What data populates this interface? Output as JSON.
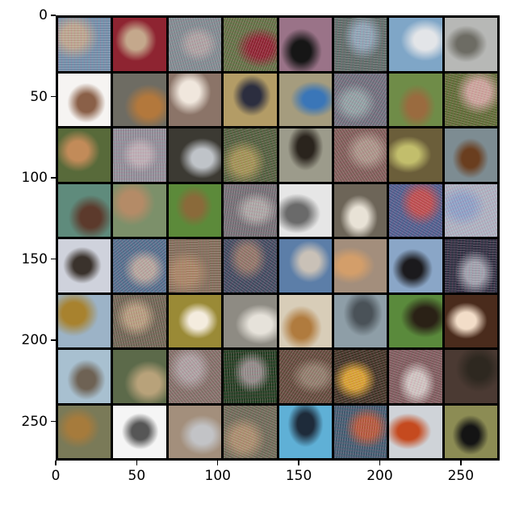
{
  "figure": {
    "x_ticks": [
      "0",
      "50",
      "100",
      "150",
      "200",
      "250"
    ],
    "y_ticks": [
      "0",
      "50",
      "100",
      "150",
      "200",
      "250"
    ]
  },
  "grid": {
    "rows": 8,
    "cols": 8,
    "tiles": [
      {
        "subject": "noisy-blue-scene",
        "bg": "#6f8ea8",
        "fg": "#b7a58d"
      },
      {
        "subject": "cat-face",
        "bg": "#8e2431",
        "fg": "#c4a88c"
      },
      {
        "subject": "noisy-vehicle",
        "bg": "#7c8a8f",
        "fg": "#a8a2a1"
      },
      {
        "subject": "red-car-noisy",
        "bg": "#5f6f43",
        "fg": "#8a2330"
      },
      {
        "subject": "black-animal",
        "bg": "#9a7388",
        "fg": "#161616"
      },
      {
        "subject": "noisy-truck",
        "bg": "#5a6b67",
        "fg": "#8aa3b3"
      },
      {
        "subject": "airplane",
        "bg": "#7fa6c7",
        "fg": "#e3e5e8"
      },
      {
        "subject": "airplane-ground",
        "bg": "#b7b8b6",
        "fg": "#6d6c64"
      },
      {
        "subject": "frog-white-bg",
        "bg": "#f6f4f2",
        "fg": "#8a6048"
      },
      {
        "subject": "dog-running",
        "bg": "#6e6c63",
        "fg": "#b3783c"
      },
      {
        "subject": "cat-calico",
        "bg": "#8b7468",
        "fg": "#f0e7dd"
      },
      {
        "subject": "rider-horse",
        "bg": "#b39c66",
        "fg": "#2c2e3f"
      },
      {
        "subject": "blue-truck",
        "bg": "#a59c7e",
        "fg": "#3a76b8"
      },
      {
        "subject": "noisy-road",
        "bg": "#6a6e7a",
        "fg": "#8da0a2"
      },
      {
        "subject": "deer-field",
        "bg": "#6f8c48",
        "fg": "#9a6b3f"
      },
      {
        "subject": "horse-noisy",
        "bg": "#5c6b35",
        "fg": "#c7a49a"
      },
      {
        "subject": "deer",
        "bg": "#586a3a",
        "fg": "#c28b59"
      },
      {
        "subject": "noisy-gray",
        "bg": "#8c8d96",
        "fg": "#b8aeb3"
      },
      {
        "subject": "silver-car",
        "bg": "#3c3a33",
        "fg": "#bfc3c8"
      },
      {
        "subject": "noisy-green",
        "bg": "#4e5e3c",
        "fg": "#9c9152"
      },
      {
        "subject": "bison",
        "bg": "#9c9b8b",
        "fg": "#2a241d"
      },
      {
        "subject": "noisy-brown",
        "bg": "#7b5d57",
        "fg": "#a79487"
      },
      {
        "subject": "green-car",
        "bg": "#6b5e3a",
        "fg": "#c2be6c"
      },
      {
        "subject": "elk",
        "bg": "#7d8c92",
        "fg": "#6a3e1f"
      },
      {
        "subject": "dog-teal",
        "bg": "#5f8b7c",
        "fg": "#5c3a2c"
      },
      {
        "subject": "horse-field",
        "bg": "#7c906a",
        "fg": "#b48b67"
      },
      {
        "subject": "frog-green",
        "bg": "#5c8a3a",
        "fg": "#8a6a3a"
      },
      {
        "subject": "noisy-truck-2",
        "bg": "#6f6f73",
        "fg": "#a7a6a3"
      },
      {
        "subject": "rooster-white",
        "bg": "#e6e6e6",
        "fg": "#6a6a6a"
      },
      {
        "subject": "cat-white",
        "bg": "#6d6558",
        "fg": "#e8e2d6"
      },
      {
        "subject": "noisy-blue-plane",
        "bg": "#4c5d8c",
        "fg": "#b94c4c"
      },
      {
        "subject": "noisy-light",
        "bg": "#a9b1bf",
        "fg": "#8aa0c5"
      },
      {
        "subject": "deer-white",
        "bg": "#cfd2dc",
        "fg": "#3a322c"
      },
      {
        "subject": "noisy-boat",
        "bg": "#4f6d8a",
        "fg": "#b1a69c"
      },
      {
        "subject": "noisy-cat",
        "bg": "#7d6d58",
        "fg": "#a38463"
      },
      {
        "subject": "noisy-dark",
        "bg": "#3e4a5e",
        "fg": "#8c7566"
      },
      {
        "subject": "boat-red",
        "bg": "#5c7ea8",
        "fg": "#c9c1b7"
      },
      {
        "subject": "cat-orange",
        "bg": "#a38e7c",
        "fg": "#d39e6a"
      },
      {
        "subject": "ostrich",
        "bg": "#8aa6c7",
        "fg": "#1b1a1d"
      },
      {
        "subject": "dark-car-noisy",
        "bg": "#2c2f40",
        "fg": "#9aa0aa"
      },
      {
        "subject": "yellow-plane",
        "bg": "#9cb3c7",
        "fg": "#a8822e"
      },
      {
        "subject": "deer-noisy",
        "bg": "#6b6552",
        "fg": "#b19c7c"
      },
      {
        "subject": "dog-puppy",
        "bg": "#9a8a36",
        "fg": "#f4ecde"
      },
      {
        "subject": "white-car",
        "bg": "#8e8b83",
        "fg": "#e6e2da"
      },
      {
        "subject": "dog-door",
        "bg": "#d8cdb8",
        "fg": "#b07b3e"
      },
      {
        "subject": "plane-gray",
        "bg": "#8e9ea7",
        "fg": "#4a5258"
      },
      {
        "subject": "dog-shepherd",
        "bg": "#5a8a3c",
        "fg": "#2a2116"
      },
      {
        "subject": "rooster",
        "bg": "#4a2b1c",
        "fg": "#f2ddc8"
      },
      {
        "subject": "ostrich-head",
        "bg": "#a8c0d0",
        "fg": "#6e6254"
      },
      {
        "subject": "cat-snarl",
        "bg": "#5c6a4a",
        "fg": "#b8a27a"
      },
      {
        "subject": "deer-noisy-2",
        "bg": "#7e6f66",
        "fg": "#a8a0a0"
      },
      {
        "subject": "bird-noisy",
        "bg": "#203c20",
        "fg": "#8c8a86"
      },
      {
        "subject": "horse-noisy-2",
        "bg": "#5e4a3a",
        "fg": "#8c7d6a"
      },
      {
        "subject": "yellow-car-noisy",
        "bg": "#3d3324",
        "fg": "#d4a030"
      },
      {
        "subject": "cat-noisy",
        "bg": "#7a5c5c",
        "fg": "#cbc3bf"
      },
      {
        "subject": "frog-dark",
        "bg": "#4b3a33",
        "fg": "#2e2820"
      },
      {
        "subject": "frog-bird",
        "bg": "#7a7a58",
        "fg": "#a67b3c"
      },
      {
        "subject": "cat-white-bg",
        "bg": "#f5f5f5",
        "fg": "#565656"
      },
      {
        "subject": "silver-car-2",
        "bg": "#a38f7c",
        "fg": "#c2c3c6"
      },
      {
        "subject": "deer-noisy-3",
        "bg": "#6a6a56",
        "fg": "#a58d6b"
      },
      {
        "subject": "shoe-blue",
        "bg": "#5fb0d6",
        "fg": "#1e2b3a"
      },
      {
        "subject": "noisy-car-red",
        "bg": "#3f5a6e",
        "fg": "#b0583a"
      },
      {
        "subject": "orange-car",
        "bg": "#cfd3d8",
        "fg": "#c54a1f"
      },
      {
        "subject": "black-dog",
        "bg": "#8c8c54",
        "fg": "#141414"
      }
    ]
  }
}
